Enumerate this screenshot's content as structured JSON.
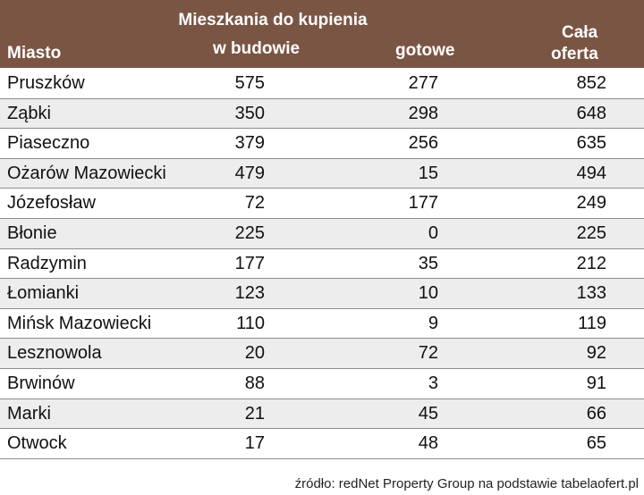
{
  "header": {
    "group_label": "Mieszkania  do kupienia",
    "city_label": "Miasto",
    "under_construction_label": "w budowie",
    "ready_label": "gotowe",
    "total_label_line1": "Cała",
    "total_label_line2": "oferta"
  },
  "rows": [
    {
      "city": "Pruszków",
      "w_budowie": "575",
      "gotowe": "277",
      "cala_oferta": "852"
    },
    {
      "city": "Ząbki",
      "w_budowie": "350",
      "gotowe": "298",
      "cala_oferta": "648"
    },
    {
      "city": "Piaseczno",
      "w_budowie": "379",
      "gotowe": "256",
      "cala_oferta": "635"
    },
    {
      "city": "Ożarów Mazowiecki",
      "w_budowie": "479",
      "gotowe": "15",
      "cala_oferta": "494"
    },
    {
      "city": "Józefosław",
      "w_budowie": "72",
      "gotowe": "177",
      "cala_oferta": "249"
    },
    {
      "city": "Błonie",
      "w_budowie": "225",
      "gotowe": "0",
      "cala_oferta": "225"
    },
    {
      "city": "Radzymin",
      "w_budowie": "177",
      "gotowe": "35",
      "cala_oferta": "212"
    },
    {
      "city": "Łomianki",
      "w_budowie": "123",
      "gotowe": "10",
      "cala_oferta": "133"
    },
    {
      "city": "Mińsk Mazowiecki",
      "w_budowie": "110",
      "gotowe": "9",
      "cala_oferta": "119"
    },
    {
      "city": "Lesznowola",
      "w_budowie": "20",
      "gotowe": "72",
      "cala_oferta": "92"
    },
    {
      "city": "Brwinów",
      "w_budowie": "88",
      "gotowe": "3",
      "cala_oferta": "91"
    },
    {
      "city": "Marki",
      "w_budowie": "21",
      "gotowe": "45",
      "cala_oferta": "66"
    },
    {
      "city": "Otwock",
      "w_budowie": "17",
      "gotowe": "48",
      "cala_oferta": "65"
    }
  ],
  "source": "źródło: redNet Property Group na podstawie tabelaofert.pl",
  "colors": {
    "header_bg": "#7b5544",
    "stripe": "#ededed"
  }
}
